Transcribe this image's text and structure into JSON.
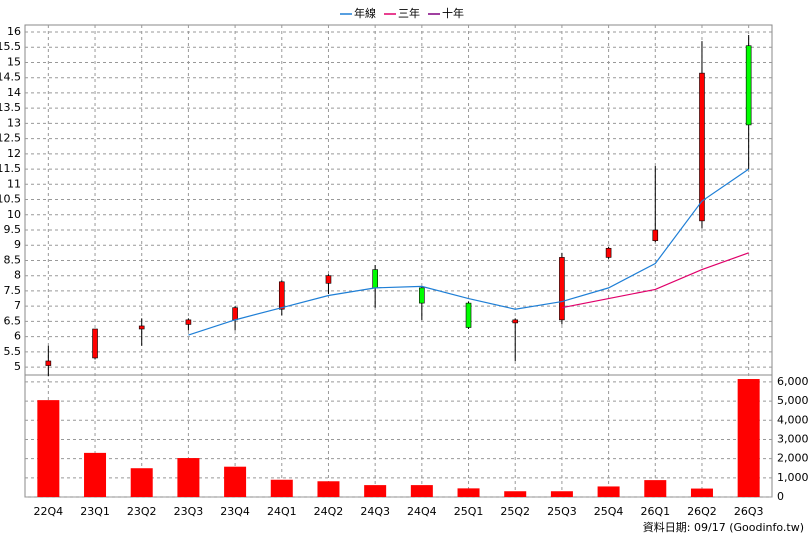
{
  "chart_data": {
    "type": "candlestick",
    "categories": [
      "22Q4",
      "23Q1",
      "23Q2",
      "23Q3",
      "23Q4",
      "24Q1",
      "24Q2",
      "24Q3",
      "24Q4",
      "25Q1",
      "25Q2",
      "25Q3",
      "25Q4",
      "26Q1",
      "26Q2",
      "26Q3"
    ],
    "open": [
      5.05,
      5.3,
      6.25,
      6.4,
      6.55,
      6.9,
      7.75,
      8.2,
      7.6,
      7.1,
      6.45,
      6.55,
      8.6,
      9.15,
      9.8,
      15.55
    ],
    "high": [
      5.7,
      6.25,
      6.6,
      6.6,
      7.0,
      7.85,
      8.05,
      8.35,
      7.65,
      7.15,
      6.6,
      8.75,
      8.95,
      11.6,
      15.7,
      15.9
    ],
    "low": [
      4.7,
      5.25,
      5.7,
      6.2,
      6.2,
      6.7,
      7.4,
      6.95,
      6.55,
      6.25,
      5.2,
      6.4,
      8.55,
      9.1,
      9.55,
      11.5
    ],
    "close": [
      5.2,
      6.25,
      6.35,
      6.55,
      6.95,
      7.8,
      8.0,
      7.6,
      7.1,
      6.3,
      6.55,
      8.6,
      8.9,
      9.5,
      14.65,
      12.95
    ],
    "up_color": "#ff0000",
    "down_color": "#00ff00",
    "series": [
      {
        "name": "年線",
        "color": "#1f7fd6",
        "values": [
          null,
          null,
          null,
          6.05,
          6.55,
          6.95,
          7.35,
          7.6,
          7.65,
          7.25,
          6.9,
          7.15,
          7.6,
          8.4,
          10.45,
          11.5
        ]
      },
      {
        "name": "三年",
        "color": "#e0006a",
        "values": [
          null,
          null,
          null,
          null,
          null,
          null,
          null,
          null,
          null,
          null,
          null,
          6.95,
          7.25,
          7.55,
          8.2,
          8.75
        ]
      },
      {
        "name": "十年",
        "color": "#800080",
        "values": [
          null,
          null,
          null,
          null,
          null,
          null,
          null,
          null,
          null,
          null,
          null,
          null,
          null,
          null,
          null,
          null
        ]
      }
    ],
    "volume": {
      "color": "#ff0000",
      "values": [
        5050,
        2300,
        1500,
        2030,
        1580,
        900,
        820,
        620,
        620,
        450,
        300,
        300,
        550,
        880,
        440,
        6150
      ]
    },
    "ylim": [
      4.74,
      16.23
    ],
    "yticks": [
      5,
      5.5,
      6,
      6.5,
      7,
      7.5,
      8,
      8.5,
      9,
      9.5,
      10,
      10.5,
      11,
      11.5,
      12,
      12.5,
      13,
      13.5,
      14,
      14.5,
      15,
      15.5,
      16
    ],
    "y2lim": [
      0,
      6360
    ],
    "y2ticks": [
      0,
      {
        "value": 1000,
        "label": "1,000"
      },
      {
        "value": 2000,
        "label": "2,000"
      },
      {
        "value": 3000,
        "label": "3,000"
      },
      {
        "value": 4000,
        "label": "4,000"
      },
      {
        "value": 5000,
        "label": "5,000"
      },
      {
        "value": 6000,
        "label": "6,000"
      }
    ],
    "grid": true,
    "footnote": "資料日期: 09/17 (Goodinfo.tw)"
  }
}
